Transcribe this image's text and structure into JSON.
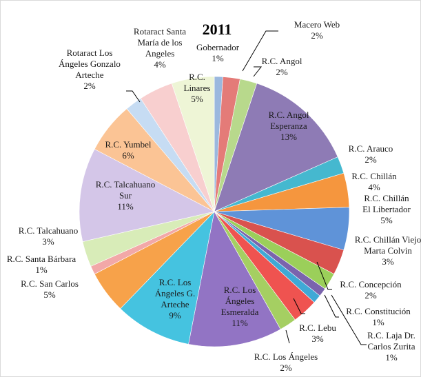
{
  "chart_data": {
    "type": "pie",
    "title": "2011",
    "legend": "none",
    "slices": [
      {
        "label": "Gobernador",
        "lines": [
          "Gobernador"
        ],
        "value": 1,
        "pct": "1%",
        "color": "#9bb8de"
      },
      {
        "label": "Macero Web",
        "lines": [
          "Macero Web"
        ],
        "value": 2,
        "pct": "2%",
        "color": "#e47b78"
      },
      {
        "label": "R.C. Angol",
        "lines": [
          "R.C. Angol"
        ],
        "value": 2,
        "pct": "2%",
        "color": "#b8d98c"
      },
      {
        "label": "R.C. Angol Esperanza",
        "lines": [
          "R.C. Angol",
          "Esperanza"
        ],
        "value": 13,
        "pct": "13%",
        "color": "#8e7bb5"
      },
      {
        "label": "R.C. Arauco",
        "lines": [
          "R.C. Arauco"
        ],
        "value": 2,
        "pct": "2%",
        "color": "#45b8cf"
      },
      {
        "label": "R.C. Chillán",
        "lines": [
          "R.C. Chillán"
        ],
        "value": 4,
        "pct": "4%",
        "color": "#f5963e"
      },
      {
        "label": "R.C. Chillán El Libertador",
        "lines": [
          "R.C. Chillán",
          "El Libertador"
        ],
        "value": 5,
        "pct": "5%",
        "color": "#5f93d8"
      },
      {
        "label": "R.C. Chillán Viejo Marta Colvin",
        "lines": [
          "R.C. Chillán Viejo",
          "Marta Colvin"
        ],
        "value": 3,
        "pct": "3%",
        "color": "#d9524e"
      },
      {
        "label": "R.C. Concepción",
        "lines": [
          "R.C. Concepción"
        ],
        "value": 2,
        "pct": "2%",
        "color": "#9bcf5a"
      },
      {
        "label": "R.C. Constitución",
        "lines": [
          "R.C. Constitución"
        ],
        "value": 1,
        "pct": "1%",
        "color": "#7a64ad"
      },
      {
        "label": "R.C. Laja Dr. Carlos Zurita",
        "lines": [
          "R.C. Laja Dr.",
          "Carlos Zurita"
        ],
        "value": 1,
        "pct": "1%",
        "color": "#3fa9d6"
      },
      {
        "label": "R.C. Lebu",
        "lines": [
          "R.C. Lebu"
        ],
        "value": 3,
        "pct": "3%",
        "color": "#ef5350"
      },
      {
        "label": "R.C. Los Ángeles",
        "lines": [
          "R.C. Los Ángeles"
        ],
        "value": 2,
        "pct": "2%",
        "color": "#a5cf62"
      },
      {
        "label": "R.C. Los Ángeles Esmeralda",
        "lines": [
          "R.C. Los",
          "Ángeles",
          "Esmeralda"
        ],
        "value": 11,
        "pct": "11%",
        "color": "#9274c4"
      },
      {
        "label": "R.C. Los Ángeles G. Arteche",
        "lines": [
          "R.C. Los",
          "Ángeles G.",
          "Arteche"
        ],
        "value": 9,
        "pct": "9%",
        "color": "#45c3e0"
      },
      {
        "label": "R.C. San Carlos",
        "lines": [
          "R.C. San Carlos"
        ],
        "value": 5,
        "pct": "5%",
        "color": "#f7a24a"
      },
      {
        "label": "R.C. Santa Bárbara",
        "lines": [
          "R.C. Santa Bárbara"
        ],
        "value": 1,
        "pct": "1%",
        "color": "#f2a8a8"
      },
      {
        "label": "R.C. Talcahuano",
        "lines": [
          "R.C. Talcahuano"
        ],
        "value": 3,
        "pct": "3%",
        "color": "#d8ecb8"
      },
      {
        "label": "R.C. Talcahuano Sur",
        "lines": [
          "R.C. Talcahuano",
          "Sur"
        ],
        "value": 11,
        "pct": "11%",
        "color": "#d4c6e8"
      },
      {
        "label": "R.C. Yumbel",
        "lines": [
          "R.C. Yumbel"
        ],
        "value": 6,
        "pct": "6%",
        "color": "#fbc495"
      },
      {
        "label": "Rotaract Los Ángeles Gonzalo Arteche",
        "lines": [
          "Rotaract Los",
          "Ángeles Gonzalo",
          "Arteche"
        ],
        "value": 2,
        "pct": "2%",
        "color": "#c6dcf3"
      },
      {
        "label": "Rotaract Santa María de los Angeles",
        "lines": [
          "Rotaract Santa",
          "María de los",
          "Angeles"
        ],
        "value": 4,
        "pct": "4%",
        "color": "#f8cfcf"
      },
      {
        "label": "R.C. Linares",
        "lines": [
          "R.C.",
          "Linares"
        ],
        "value": 5,
        "pct": "5%",
        "color": "#eef5d6"
      }
    ]
  }
}
